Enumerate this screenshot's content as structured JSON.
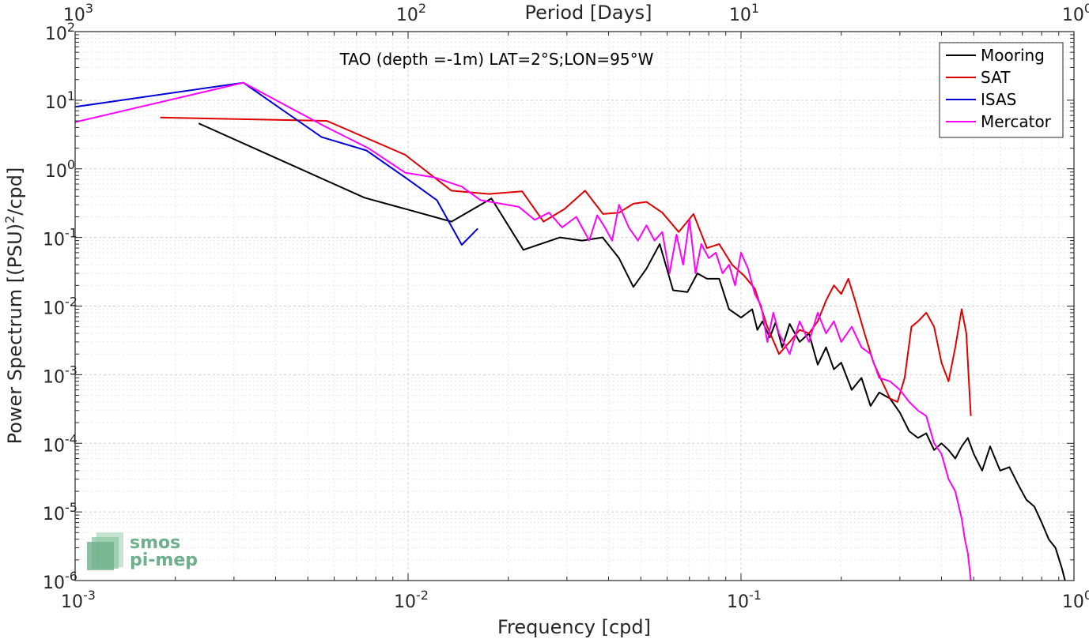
{
  "chart_data": {
    "type": "line",
    "title": "TAO (depth =-1m) LAT=2°S;LON=95°W",
    "xlabel": "Frequency [cpd]",
    "ylabel": "Power Spectrum [(PSU)",
    "ylabel_sup": "2",
    "ylabel_tail": "/cpd]",
    "x2label": "Period [Days]",
    "xscale": "log",
    "yscale": "log",
    "xlim": [
      0.001,
      1
    ],
    "ylim": [
      1e-06,
      100
    ],
    "grid": true,
    "legend_position": "top-right",
    "x_ticks": [
      {
        "mantissa": "10",
        "exp": "-3"
      },
      {
        "mantissa": "10",
        "exp": "-2"
      },
      {
        "mantissa": "10",
        "exp": "-1"
      },
      {
        "mantissa": "10",
        "exp": "0"
      }
    ],
    "x2_ticks": [
      {
        "mantissa": "10",
        "exp": "3"
      },
      {
        "mantissa": "10",
        "exp": "2"
      },
      {
        "mantissa": "10",
        "exp": "1"
      },
      {
        "mantissa": "10",
        "exp": "0"
      }
    ],
    "y_ticks": [
      {
        "mantissa": "10",
        "exp": "-6"
      },
      {
        "mantissa": "10",
        "exp": "-5"
      },
      {
        "mantissa": "10",
        "exp": "-4"
      },
      {
        "mantissa": "10",
        "exp": "-3"
      },
      {
        "mantissa": "10",
        "exp": "-2"
      },
      {
        "mantissa": "10",
        "exp": "-1"
      },
      {
        "mantissa": "10",
        "exp": "0"
      },
      {
        "mantissa": "10",
        "exp": "1"
      },
      {
        "mantissa": "10",
        "exp": "2"
      }
    ],
    "series": [
      {
        "name": "Mooring",
        "color": "#000000",
        "x": [
          0.00235,
          0.0074,
          0.0135,
          0.0178,
          0.0222,
          0.0286,
          0.0333,
          0.0384,
          0.043,
          0.0475,
          0.052,
          0.057,
          0.0625,
          0.069,
          0.074,
          0.079,
          0.086,
          0.092,
          0.1,
          0.108,
          0.112,
          0.116,
          0.122,
          0.127,
          0.133,
          0.14,
          0.15,
          0.16,
          0.17,
          0.18,
          0.19,
          0.2,
          0.215,
          0.23,
          0.245,
          0.26,
          0.28,
          0.3,
          0.32,
          0.34,
          0.36,
          0.38,
          0.4,
          0.42,
          0.44,
          0.46,
          0.48,
          0.5,
          0.53,
          0.56,
          0.6,
          0.64,
          0.68,
          0.72,
          0.76,
          0.8,
          0.84,
          0.88,
          0.92,
          0.94
        ],
        "y": [
          4.6,
          0.38,
          0.17,
          0.37,
          0.066,
          0.1,
          0.09,
          0.1,
          0.05,
          0.019,
          0.035,
          0.08,
          0.017,
          0.016,
          0.03,
          0.025,
          0.025,
          0.009,
          0.0068,
          0.009,
          0.0045,
          0.006,
          0.0035,
          0.0058,
          0.0025,
          0.0055,
          0.003,
          0.004,
          0.0014,
          0.0025,
          0.0012,
          0.0015,
          0.0006,
          0.0009,
          0.00035,
          0.00055,
          0.00045,
          0.00028,
          0.00015,
          0.00012,
          0.00014,
          8e-05,
          0.0001,
          8e-05,
          6e-05,
          9e-05,
          0.00012,
          7e-05,
          4e-05,
          9e-05,
          4e-05,
          4.5e-05,
          2.5e-05,
          1.5e-05,
          1.2e-05,
          7e-06,
          4e-06,
          3e-06,
          1.5e-06,
          1e-06
        ]
      },
      {
        "name": "SAT",
        "color": "#e00000",
        "x": [
          0.0018,
          0.0057,
          0.0098,
          0.0135,
          0.0175,
          0.022,
          0.0255,
          0.0295,
          0.034,
          0.0385,
          0.043,
          0.0475,
          0.052,
          0.058,
          0.065,
          0.072,
          0.079,
          0.086,
          0.094,
          0.102,
          0.11,
          0.12,
          0.13,
          0.14,
          0.15,
          0.16,
          0.17,
          0.18,
          0.19,
          0.2,
          0.21,
          0.22,
          0.235,
          0.25,
          0.265,
          0.28,
          0.295,
          0.31,
          0.325,
          0.34,
          0.36,
          0.38,
          0.4,
          0.42,
          0.44,
          0.46,
          0.475,
          0.485,
          0.49
        ],
        "y": [
          5.6,
          5.0,
          1.6,
          0.48,
          0.43,
          0.47,
          0.17,
          0.26,
          0.48,
          0.22,
          0.23,
          0.31,
          0.33,
          0.23,
          0.12,
          0.22,
          0.07,
          0.08,
          0.04,
          0.028,
          0.018,
          0.005,
          0.002,
          0.003,
          0.0045,
          0.004,
          0.006,
          0.012,
          0.02,
          0.015,
          0.025,
          0.012,
          0.004,
          0.0015,
          0.0008,
          0.00045,
          0.0004,
          0.0009,
          0.005,
          0.006,
          0.008,
          0.005,
          0.0015,
          0.0008,
          0.0025,
          0.009,
          0.004,
          0.0006,
          0.00025
        ]
      },
      {
        "name": "ISAS",
        "color": "#0000dd",
        "x": [
          0.001,
          0.0032,
          0.0055,
          0.0075,
          0.0098,
          0.0122,
          0.0145,
          0.0162
        ],
        "y": [
          8.0,
          18.0,
          2.9,
          1.85,
          0.75,
          0.35,
          0.078,
          0.135
        ]
      },
      {
        "name": "Mercator",
        "color": "#ff00ff",
        "x": [
          0.001,
          0.0032,
          0.0056,
          0.0076,
          0.0098,
          0.012,
          0.0145,
          0.0165,
          0.019,
          0.0215,
          0.024,
          0.0265,
          0.029,
          0.032,
          0.035,
          0.037,
          0.039,
          0.041,
          0.043,
          0.046,
          0.049,
          0.052,
          0.055,
          0.058,
          0.061,
          0.064,
          0.067,
          0.07,
          0.073,
          0.076,
          0.08,
          0.084,
          0.088,
          0.092,
          0.096,
          0.1,
          0.105,
          0.11,
          0.115,
          0.12,
          0.125,
          0.13,
          0.14,
          0.15,
          0.16,
          0.17,
          0.18,
          0.19,
          0.2,
          0.215,
          0.23,
          0.245,
          0.26,
          0.28,
          0.3,
          0.32,
          0.34,
          0.36,
          0.38,
          0.4,
          0.42,
          0.44,
          0.46,
          0.47,
          0.48,
          0.49
        ],
        "y": [
          4.8,
          18.0,
          4.2,
          2.0,
          0.88,
          0.75,
          0.55,
          0.35,
          0.31,
          0.28,
          0.18,
          0.23,
          0.14,
          0.2,
          0.09,
          0.21,
          0.14,
          0.09,
          0.3,
          0.14,
          0.09,
          0.15,
          0.09,
          0.12,
          0.03,
          0.11,
          0.04,
          0.18,
          0.03,
          0.08,
          0.05,
          0.06,
          0.03,
          0.04,
          0.02,
          0.06,
          0.035,
          0.015,
          0.01,
          0.003,
          0.008,
          0.004,
          0.002,
          0.006,
          0.003,
          0.008,
          0.004,
          0.006,
          0.003,
          0.005,
          0.0025,
          0.002,
          0.0009,
          0.0008,
          0.0006,
          0.0004,
          0.0003,
          0.00025,
          0.0001,
          7e-05,
          3e-05,
          2e-05,
          8e-06,
          4e-06,
          2.5e-06,
          1e-06
        ]
      }
    ]
  },
  "logo": {
    "line1": "smos",
    "line2": "pi-mep"
  }
}
